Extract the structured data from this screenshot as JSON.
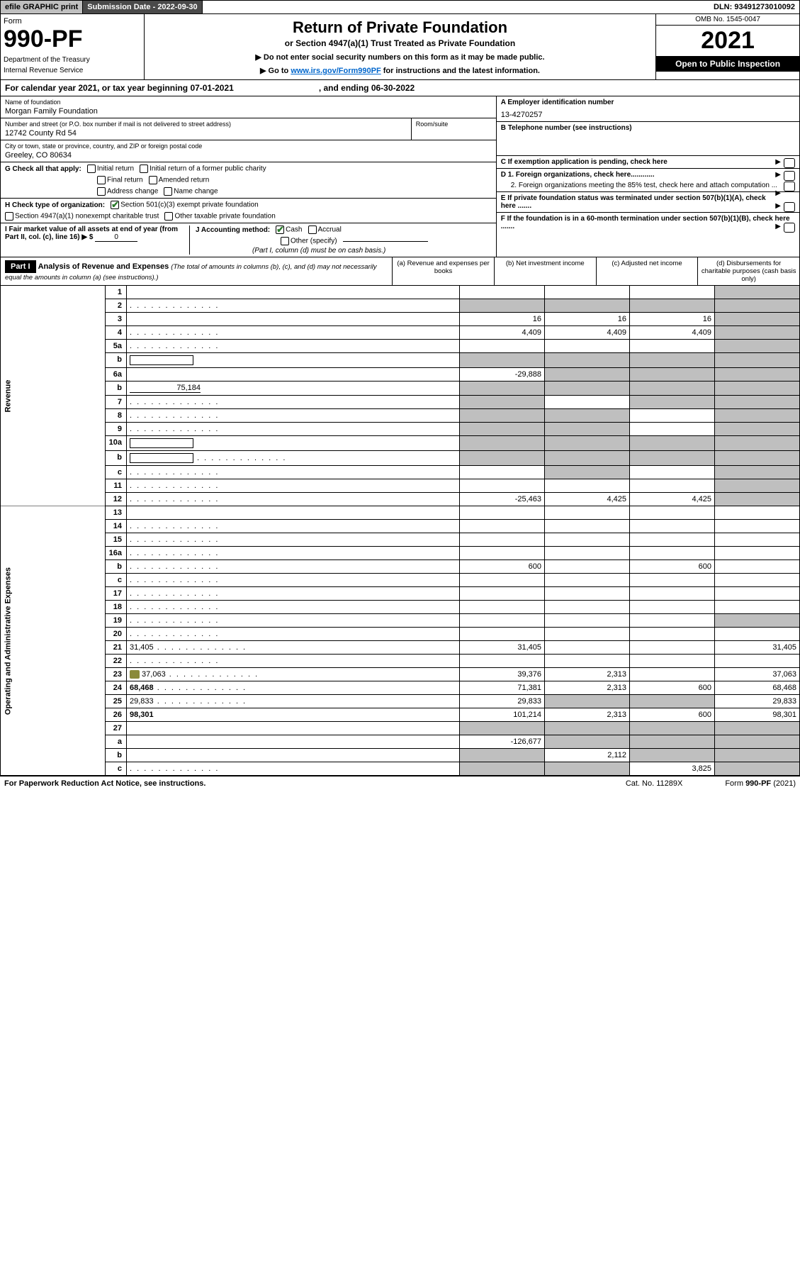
{
  "topbar": {
    "efile": "efile GRAPHIC print",
    "subdate_label": "Submission Date - 2022-09-30",
    "dln": "DLN: 93491273010092"
  },
  "header": {
    "form_word": "Form",
    "form_no": "990-PF",
    "dept1": "Department of the Treasury",
    "dept2": "Internal Revenue Service",
    "title": "Return of Private Foundation",
    "subtitle": "or Section 4947(a)(1) Trust Treated as Private Foundation",
    "instr1": "▶ Do not enter social security numbers on this form as it may be made public.",
    "instr2_pre": "▶ Go to ",
    "instr2_link": "www.irs.gov/Form990PF",
    "instr2_post": " for instructions and the latest information.",
    "omb": "OMB No. 1545-0047",
    "year": "2021",
    "open": "Open to Public Inspection"
  },
  "calyear": {
    "pre": "For calendar year 2021, or tax year beginning 07-01-2021",
    "mid": ", and ending 06-30-2022"
  },
  "entity": {
    "name_label": "Name of foundation",
    "name": "Morgan Family Foundation",
    "addr_label": "Number and street (or P.O. box number if mail is not delivered to street address)",
    "addr": "12742 County Rd 54",
    "room_label": "Room/suite",
    "city_label": "City or town, state or province, country, and ZIP or foreign postal code",
    "city": "Greeley, CO  80634",
    "ein_label": "A Employer identification number",
    "ein": "13-4270257",
    "tel_label": "B Telephone number (see instructions)",
    "c_label": "C If exemption application is pending, check here",
    "d1": "D 1. Foreign organizations, check here............",
    "d2": "2. Foreign organizations meeting the 85% test, check here and attach computation ...",
    "e_label": "E  If private foundation status was terminated under section 507(b)(1)(A), check here .......",
    "f_label": "F  If the foundation is in a 60-month termination under section 507(b)(1)(B), check here ......."
  },
  "g": {
    "label": "G Check all that apply:",
    "opts": [
      "Initial return",
      "Initial return of a former public charity",
      "Final return",
      "Amended return",
      "Address change",
      "Name change"
    ]
  },
  "h": {
    "label": "H Check type of organization:",
    "opt1": "Section 501(c)(3) exempt private foundation",
    "opt2": "Section 4947(a)(1) nonexempt charitable trust",
    "opt3": "Other taxable private foundation"
  },
  "i": {
    "label": "I Fair market value of all assets at end of year (from Part II, col. (c), line 16) ▶ $",
    "val": "0"
  },
  "j": {
    "label": "J Accounting method:",
    "cash": "Cash",
    "accrual": "Accrual",
    "other": "Other (specify)",
    "note": "(Part I, column (d) must be on cash basis.)"
  },
  "part1": {
    "hdr": "Part I",
    "title": "Analysis of Revenue and Expenses",
    "note": "(The total of amounts in columns (b), (c), and (d) may not necessarily equal the amounts in column (a) (see instructions).)",
    "cols": {
      "a": "(a)   Revenue and expenses per books",
      "b": "(b)   Net investment income",
      "c": "(c)   Adjusted net income",
      "d": "(d)  Disbursements for charitable purposes (cash basis only)"
    }
  },
  "side": {
    "rev": "Revenue",
    "exp": "Operating and Administrative Expenses"
  },
  "rows": [
    {
      "n": "1",
      "d": "",
      "a": "",
      "b": "",
      "c": "",
      "shade": [
        "d"
      ]
    },
    {
      "n": "2",
      "d": "",
      "dots": true,
      "a": "",
      "b": "",
      "c": "",
      "shade": [
        "a",
        "b",
        "c",
        "d"
      ]
    },
    {
      "n": "3",
      "d": "",
      "a": "16",
      "b": "16",
      "c": "16",
      "shade": [
        "d"
      ]
    },
    {
      "n": "4",
      "d": "",
      "dots": true,
      "a": "4,409",
      "b": "4,409",
      "c": "4,409",
      "shade": [
        "d"
      ]
    },
    {
      "n": "5a",
      "d": "",
      "dots": true,
      "a": "",
      "b": "",
      "c": "",
      "shade": [
        "d"
      ]
    },
    {
      "n": "b",
      "d": "",
      "inline": true,
      "a": "",
      "b": "",
      "c": "",
      "shade": [
        "a",
        "b",
        "c",
        "d"
      ]
    },
    {
      "n": "6a",
      "d": "",
      "a": "-29,888",
      "b": "",
      "c": "",
      "shade": [
        "b",
        "c",
        "d"
      ]
    },
    {
      "n": "b",
      "d": "",
      "under": "75,184",
      "a": "",
      "b": "",
      "c": "",
      "shade": [
        "a",
        "b",
        "c",
        "d"
      ]
    },
    {
      "n": "7",
      "d": "",
      "dots": true,
      "a": "",
      "b": "",
      "c": "",
      "shade": [
        "a",
        "c",
        "d"
      ]
    },
    {
      "n": "8",
      "d": "",
      "dots": true,
      "a": "",
      "b": "",
      "c": "",
      "shade": [
        "a",
        "b",
        "d"
      ]
    },
    {
      "n": "9",
      "d": "",
      "dots": true,
      "a": "",
      "b": "",
      "c": "",
      "shade": [
        "a",
        "b",
        "d"
      ]
    },
    {
      "n": "10a",
      "d": "",
      "inline": true,
      "a": "",
      "b": "",
      "c": "",
      "shade": [
        "a",
        "b",
        "c",
        "d"
      ]
    },
    {
      "n": "b",
      "d": "",
      "dots": true,
      "inline": true,
      "a": "",
      "b": "",
      "c": "",
      "shade": [
        "a",
        "b",
        "c",
        "d"
      ]
    },
    {
      "n": "c",
      "d": "",
      "dots": true,
      "a": "",
      "b": "",
      "c": "",
      "shade": [
        "b",
        "d"
      ]
    },
    {
      "n": "11",
      "d": "",
      "dots": true,
      "a": "",
      "b": "",
      "c": "",
      "shade": [
        "d"
      ]
    },
    {
      "n": "12",
      "d": "",
      "dots": true,
      "bold": true,
      "a": "-25,463",
      "b": "4,425",
      "c": "4,425",
      "shade": [
        "d"
      ]
    },
    {
      "n": "13",
      "d": "",
      "a": "",
      "b": "",
      "c": ""
    },
    {
      "n": "14",
      "d": "",
      "dots": true,
      "a": "",
      "b": "",
      "c": ""
    },
    {
      "n": "15",
      "d": "",
      "dots": true,
      "a": "",
      "b": "",
      "c": ""
    },
    {
      "n": "16a",
      "d": "",
      "dots": true,
      "a": "",
      "b": "",
      "c": ""
    },
    {
      "n": "b",
      "d": "",
      "dots": true,
      "a": "600",
      "b": "",
      "c": "600"
    },
    {
      "n": "c",
      "d": "",
      "dots": true,
      "a": "",
      "b": "",
      "c": ""
    },
    {
      "n": "17",
      "d": "",
      "dots": true,
      "a": "",
      "b": "",
      "c": ""
    },
    {
      "n": "18",
      "d": "",
      "dots": true,
      "a": "",
      "b": "",
      "c": ""
    },
    {
      "n": "19",
      "d": "",
      "dots": true,
      "a": "",
      "b": "",
      "c": "",
      "shade": [
        "d"
      ]
    },
    {
      "n": "20",
      "d": "",
      "dots": true,
      "a": "",
      "b": "",
      "c": ""
    },
    {
      "n": "21",
      "d": "31,405",
      "dots": true,
      "a": "31,405",
      "b": "",
      "c": ""
    },
    {
      "n": "22",
      "d": "",
      "dots": true,
      "a": "",
      "b": "",
      "c": ""
    },
    {
      "n": "23",
      "d": "37,063",
      "dots": true,
      "attach": true,
      "a": "39,376",
      "b": "2,313",
      "c": ""
    },
    {
      "n": "24",
      "d": "68,468",
      "dots": true,
      "bold": true,
      "a": "71,381",
      "b": "2,313",
      "c": "600"
    },
    {
      "n": "25",
      "d": "29,833",
      "dots": true,
      "a": "29,833",
      "b": "",
      "c": "",
      "shade": [
        "b",
        "c"
      ]
    },
    {
      "n": "26",
      "d": "98,301",
      "bold": true,
      "a": "101,214",
      "b": "2,313",
      "c": "600"
    },
    {
      "n": "27",
      "d": "",
      "a": "",
      "b": "",
      "c": "",
      "shade": [
        "a",
        "b",
        "c",
        "d"
      ]
    },
    {
      "n": "a",
      "d": "",
      "bold": true,
      "a": "-126,677",
      "b": "",
      "c": "",
      "shade": [
        "b",
        "c",
        "d"
      ]
    },
    {
      "n": "b",
      "d": "",
      "bold": true,
      "a": "",
      "b": "2,112",
      "c": "",
      "shade": [
        "a",
        "c",
        "d"
      ]
    },
    {
      "n": "c",
      "d": "",
      "dots": true,
      "bold": true,
      "a": "",
      "b": "",
      "c": "3,825",
      "shade": [
        "a",
        "b",
        "d"
      ]
    }
  ],
  "footer": {
    "left": "For Paperwork Reduction Act Notice, see instructions.",
    "mid": "Cat. No. 11289X",
    "right": "Form 990-PF (2021)"
  }
}
